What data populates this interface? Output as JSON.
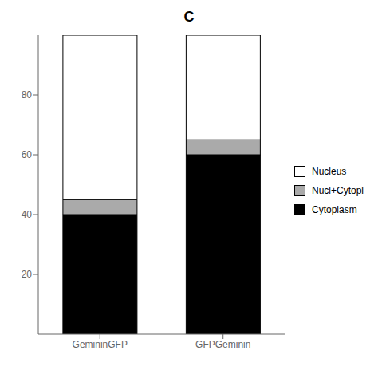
{
  "chart_data": {
    "type": "bar",
    "title": "C",
    "categories": [
      "GemininGFP",
      "GFPGeminin"
    ],
    "series": [
      {
        "name": "Cytoplasm",
        "color": "#000000",
        "values": [
          40,
          60
        ]
      },
      {
        "name": "Nucl+Cytopl",
        "color": "#aaaaaa",
        "values": [
          5,
          5
        ]
      },
      {
        "name": "Nucleus",
        "color": "#ffffff",
        "values": [
          55,
          35
        ]
      }
    ],
    "stacked": true,
    "ylim": [
      0,
      100
    ],
    "yticks": [
      20,
      40,
      60,
      80
    ],
    "legend": "right",
    "grid": false
  }
}
